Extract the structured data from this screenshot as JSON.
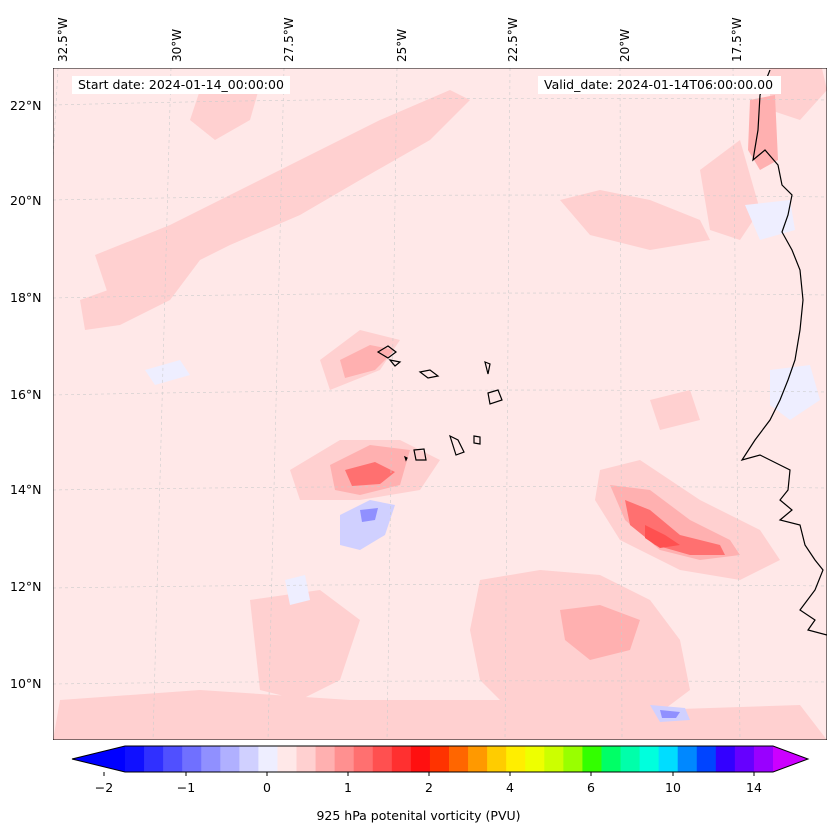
{
  "header": {
    "start_date": "Start date: 2024-01-14_00:00:00",
    "valid_date": "Valid_date: 2024-01-14T06:00:00.00"
  },
  "lon_labels": [
    "32.5°W",
    "30°W",
    "27.5°W",
    "25°W",
    "22.5°W",
    "20°W",
    "17.5°W"
  ],
  "lat_labels": [
    "22°N",
    "20°N",
    "18°N",
    "16°N",
    "14°N",
    "12°N",
    "10°N"
  ],
  "colorbar": {
    "label": "925 hPa potenital vorticity (PVU)",
    "ticks": [
      "−2",
      "−1",
      "0",
      "1",
      "2",
      "4",
      "6",
      "10",
      "14"
    ],
    "colors": [
      "#1010ff",
      "#3030ff",
      "#5050ff",
      "#7070ff",
      "#9090ff",
      "#b0b0ff",
      "#d0d0ff",
      "#eeeeff",
      "#ffe8e8",
      "#ffd0d0",
      "#ffb0b0",
      "#ff9090",
      "#ff7070",
      "#ff5050",
      "#ff3030",
      "#ff1010",
      "#ff3300",
      "#ff6600",
      "#ff9900",
      "#ffcc00",
      "#ffee00",
      "#eeff00",
      "#ccff00",
      "#99ff00",
      "#33ff00",
      "#00ff66",
      "#00ffaa",
      "#00ffdd",
      "#00ddff",
      "#0088ff",
      "#0044ff",
      "#3300ff",
      "#6600ff",
      "#9900ff"
    ],
    "min_color": "#0000ff",
    "max_color": "#cc00ff"
  },
  "colors": {
    "background_field": "#ffe8e8",
    "coastline": "#000000",
    "gridline": "#cccccc"
  }
}
